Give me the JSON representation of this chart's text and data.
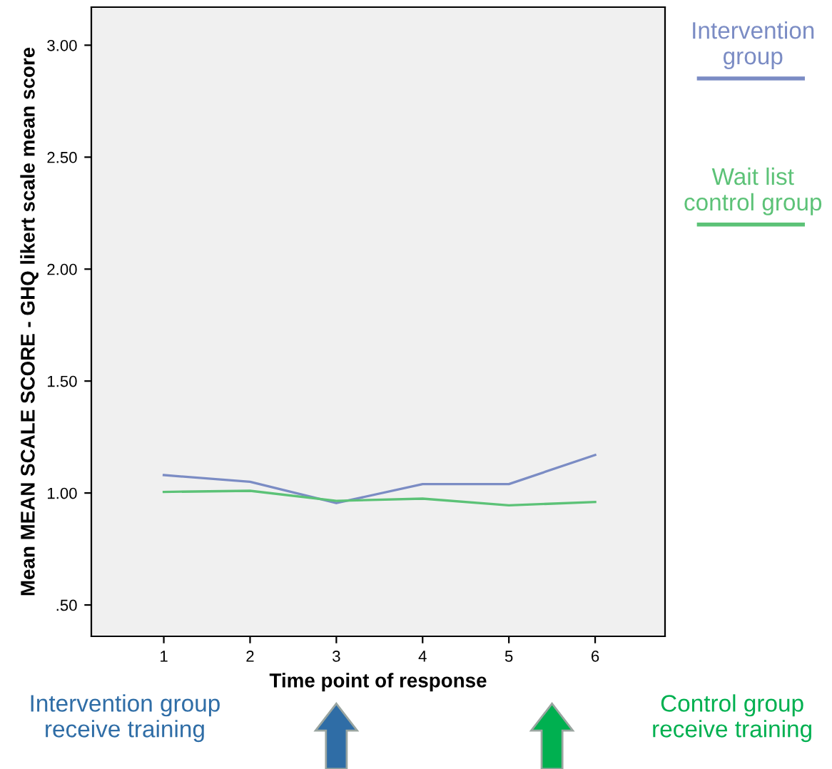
{
  "chart_data": {
    "type": "line",
    "xlabel": "Time point of response",
    "ylabel": "Mean MEAN SCALE SCORE - GHQ likert scale mean score",
    "x": [
      1,
      2,
      3,
      4,
      5,
      6
    ],
    "series": [
      {
        "name": "Intervention group",
        "color": "#7b8cc4",
        "values": [
          1.08,
          1.05,
          0.955,
          1.04,
          1.04,
          1.17
        ]
      },
      {
        "name": "Wait list control group",
        "color": "#5cc277",
        "values": [
          1.005,
          1.01,
          0.965,
          0.975,
          0.945,
          0.96
        ]
      }
    ],
    "xlim": [
      0.16,
      6.81
    ],
    "xticks": [
      1,
      2,
      3,
      4,
      5,
      6
    ],
    "ylim": [
      0.36,
      3.17
    ],
    "yticks": [
      {
        "value": 0.5,
        "label": ".50"
      },
      {
        "value": 1.0,
        "label": "1.00"
      },
      {
        "value": 1.5,
        "label": "1.50"
      },
      {
        "value": 2.0,
        "label": "2.00"
      },
      {
        "value": 2.5,
        "label": "2.50"
      },
      {
        "value": 3.0,
        "label": "3.00"
      }
    ],
    "grid": false,
    "legend": "right",
    "marker": "none",
    "line_style": "solid",
    "annotations": [
      "Intervention group receive training",
      "Control group receive training"
    ]
  }
}
